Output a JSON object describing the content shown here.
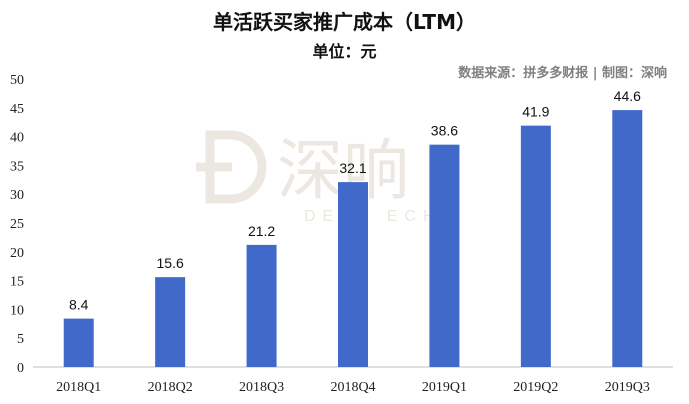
{
  "title": "单活跃买家推广成本（LTM）",
  "subtitle": "单位：元",
  "source": "数据来源：拼多多财报 | 制图：深响",
  "watermark": {
    "brand": "深响",
    "text": "DEEP ECHO"
  },
  "colors": {
    "bar": "#4169c9",
    "axis": "#bfbfbf",
    "watermark": "#ece7e0"
  },
  "chart_data": {
    "type": "bar",
    "title": "单活跃买家推广成本（LTM）",
    "subtitle": "单位：元",
    "categories": [
      "2018Q1",
      "2018Q2",
      "2018Q3",
      "2018Q4",
      "2019Q1",
      "2019Q2",
      "2019Q3"
    ],
    "values": [
      8.4,
      15.6,
      21.2,
      32.1,
      38.6,
      41.9,
      44.6
    ],
    "value_labels": [
      "8.4",
      "15.6",
      "21.2",
      "32.1",
      "38.6",
      "41.9",
      "44.6"
    ],
    "yticks": [
      0,
      5,
      10,
      15,
      20,
      25,
      30,
      35,
      40,
      45,
      50
    ],
    "ylim": [
      0,
      50
    ],
    "grid": false,
    "legend": "none"
  }
}
